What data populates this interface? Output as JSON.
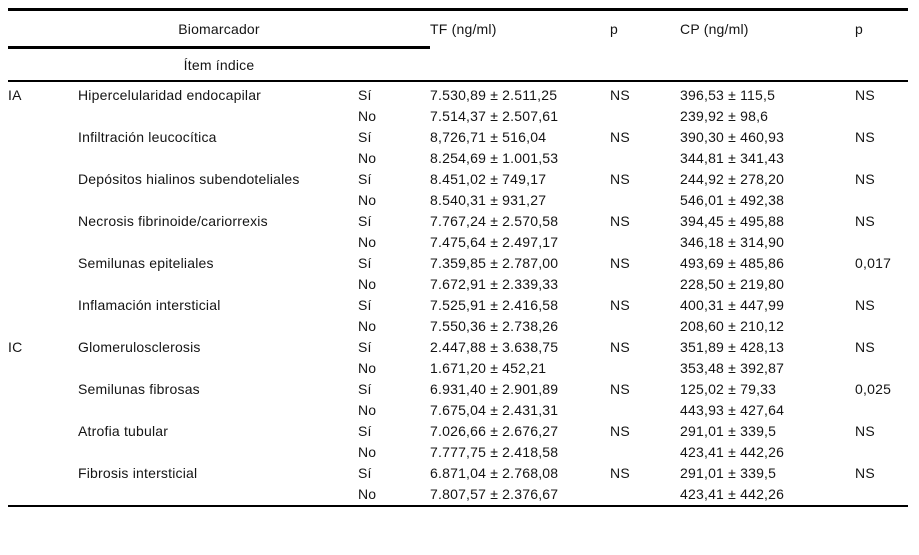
{
  "table": {
    "header": {
      "group": "Biomarcador",
      "sub": "Ítem índice",
      "tf": "TF (ng/ml)",
      "p1": "p",
      "cp": "CP (ng/ml)",
      "p2": "p"
    },
    "labels": {
      "yes": "Sí",
      "no": "No"
    },
    "groups": [
      "IA",
      "IC"
    ],
    "rows": [
      {
        "group": "IA",
        "item": "Hipercelularidad endocapilar",
        "si": [
          "7.530,89 ± 2.511,25",
          "NS",
          "396,53 ± 115,5",
          "NS"
        ],
        "no": [
          "7.514,37 ± 2.507,61",
          "",
          "239,92 ± 98,6",
          ""
        ]
      },
      {
        "group": "",
        "item": "Infiltración leucocítica",
        "si": [
          "8,726,71 ± 516,04",
          "NS",
          "390,30 ± 460,93",
          "NS"
        ],
        "no": [
          "8.254,69 ± 1.001,53",
          "",
          "344,81 ± 341,43",
          ""
        ]
      },
      {
        "group": "",
        "item": "Depósitos hialinos subendoteliales",
        "si": [
          "8.451,02 ± 749,17",
          "NS",
          "244,92 ± 278,20",
          "NS"
        ],
        "no": [
          "8.540,31 ± 931,27",
          "",
          "546,01 ± 492,38",
          ""
        ]
      },
      {
        "group": "",
        "item": "Necrosis fibrinoide/cariorrexis",
        "si": [
          "7.767,24 ± 2.570,58",
          "NS",
          "394,45 ± 495,88",
          "NS"
        ],
        "no": [
          "7.475,64 ± 2.497,17",
          "",
          "346,18 ± 314,90",
          ""
        ]
      },
      {
        "group": "",
        "item": "Semilunas epiteliales",
        "si": [
          "7.359,85 ± 2.787,00",
          "NS",
          "493,69 ± 485,86",
          "0,017"
        ],
        "no": [
          "7.672,91 ± 2.339,33",
          "",
          "228,50 ± 219,80",
          ""
        ]
      },
      {
        "group": "",
        "item": "Inflamación intersticial",
        "si": [
          "7.525,91 ± 2.416,58",
          "NS",
          "400,31 ± 447,99",
          "NS"
        ],
        "no": [
          "7.550,36 ± 2.738,26",
          "",
          "208,60 ± 210,12",
          ""
        ]
      },
      {
        "group": "IC",
        "item": "Glomerulosclerosis",
        "si": [
          "2.447,88 ± 3.638,75",
          "NS",
          "351,89 ± 428,13",
          "NS"
        ],
        "no": [
          "1.671,20 ± 452,21",
          "",
          "353,48 ± 392,87",
          ""
        ]
      },
      {
        "group": "",
        "item": "Semilunas fibrosas",
        "si": [
          "6.931,40 ± 2.901,89",
          "NS",
          "125,02 ± 79,33",
          "0,025"
        ],
        "no": [
          "7.675,04 ± 2.431,31",
          "",
          "443,93 ± 427,64",
          ""
        ]
      },
      {
        "group": "",
        "item": "Atrofia tubular",
        "si": [
          "7.026,66 ± 2.676,27",
          "NS",
          "291,01 ± 339,5",
          "NS"
        ],
        "no": [
          "7.777,75 ± 2.418,58",
          "",
          "423,41 ± 442,26",
          ""
        ]
      },
      {
        "group": "",
        "item": "Fibrosis intersticial",
        "si": [
          "6.871,04 ± 2.768,08",
          "NS",
          "291,01 ± 339,5",
          "NS"
        ],
        "no": [
          "7.807,57 ± 2.376,67",
          "",
          "423,41 ± 442,26",
          ""
        ]
      }
    ]
  }
}
